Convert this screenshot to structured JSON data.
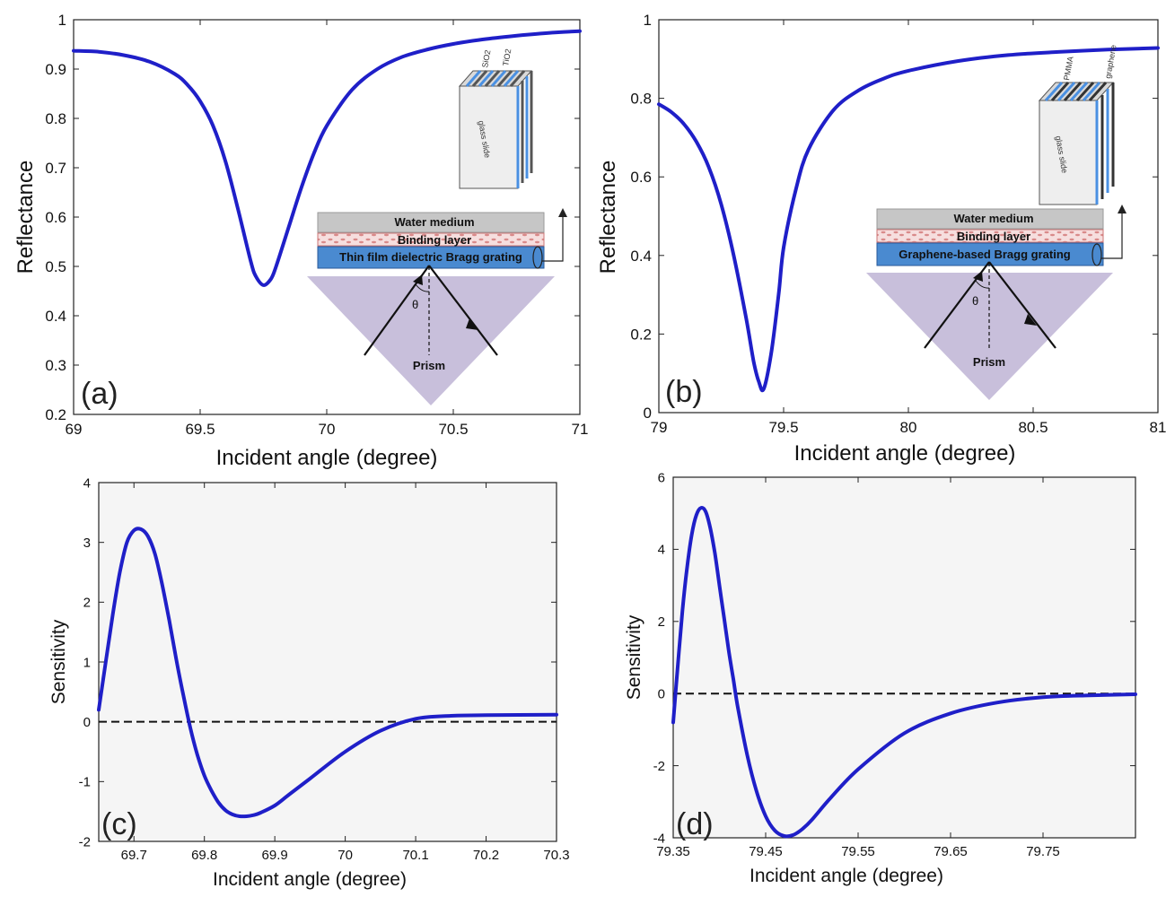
{
  "chart_data": [
    {
      "id": "a",
      "type": "line",
      "panel_label": "(a)",
      "xlabel": "Incident angle (degree)",
      "ylabel": "Reflectance",
      "xlim": [
        69,
        71
      ],
      "ylim": [
        0.2,
        1
      ],
      "xticks": [
        69,
        69.5,
        70,
        70.5,
        71
      ],
      "xtick_labels": [
        "69",
        "69.5",
        "70",
        "70.5",
        "71"
      ],
      "yticks": [
        0.2,
        0.3,
        0.4,
        0.5,
        0.6,
        0.7,
        0.8,
        0.9,
        1
      ],
      "ytick_labels": [
        "0.2",
        "0.3",
        "0.4",
        "0.5",
        "0.6",
        "0.7",
        "0.8",
        "0.9",
        "1"
      ],
      "series": [
        {
          "color": "#1f1fc8",
          "x": [
            69.0,
            69.1,
            69.2,
            69.3,
            69.4,
            69.45,
            69.5,
            69.55,
            69.6,
            69.65,
            69.7,
            69.72,
            69.75,
            69.78,
            69.8,
            69.85,
            69.9,
            69.95,
            70.0,
            70.1,
            70.2,
            70.3,
            70.4,
            70.5,
            70.6,
            70.7,
            70.8,
            70.9,
            71.0
          ],
          "y": [
            0.937,
            0.935,
            0.928,
            0.915,
            0.89,
            0.868,
            0.835,
            0.786,
            0.713,
            0.615,
            0.51,
            0.48,
            0.462,
            0.475,
            0.5,
            0.58,
            0.66,
            0.73,
            0.785,
            0.858,
            0.9,
            0.925,
            0.94,
            0.951,
            0.959,
            0.965,
            0.97,
            0.974,
            0.977
          ]
        }
      ],
      "inset": {
        "layers": [
          "Water medium",
          "Binding layer",
          "Thin film dielectric Bragg grating"
        ],
        "prism_label": "Prism",
        "angle_label": "θ",
        "cube_face_label": "glass slide",
        "cube_labels": [
          "SiO2",
          "TiO2"
        ]
      }
    },
    {
      "id": "b",
      "type": "line",
      "panel_label": "(b)",
      "xlabel": "Incident angle (degree)",
      "ylabel": "Reflectance",
      "xlim": [
        79,
        81
      ],
      "ylim": [
        0,
        1
      ],
      "xticks": [
        79,
        79.5,
        80,
        80.5,
        81
      ],
      "xtick_labels": [
        "79",
        "79.5",
        "80",
        "80.5",
        "81"
      ],
      "yticks": [
        0,
        0.2,
        0.4,
        0.6,
        0.8,
        1
      ],
      "ytick_labels": [
        "0",
        "0.2",
        "0.4",
        "0.6",
        "0.8",
        "1"
      ],
      "series": [
        {
          "color": "#1f1fc8",
          "x": [
            79.0,
            79.05,
            79.1,
            79.15,
            79.2,
            79.25,
            79.3,
            79.35,
            79.38,
            79.4,
            79.42,
            79.45,
            79.48,
            79.5,
            79.55,
            79.6,
            79.7,
            79.8,
            79.9,
            80.0,
            80.2,
            80.4,
            80.6,
            80.8,
            81.0
          ],
          "y": [
            0.785,
            0.765,
            0.735,
            0.69,
            0.625,
            0.53,
            0.4,
            0.24,
            0.13,
            0.08,
            0.06,
            0.15,
            0.3,
            0.42,
            0.57,
            0.67,
            0.77,
            0.82,
            0.85,
            0.87,
            0.895,
            0.91,
            0.918,
            0.924,
            0.928
          ]
        }
      ],
      "inset": {
        "layers": [
          "Water medium",
          "Binding layer",
          "Graphene-based Bragg grating"
        ],
        "prism_label": "Prism",
        "angle_label": "θ",
        "cube_face_label": "glass slide",
        "cube_labels": [
          "PMMA",
          "graphene"
        ]
      }
    },
    {
      "id": "c",
      "type": "line",
      "panel_label": "(c)",
      "xlabel": "Incident angle (degree)",
      "ylabel": "Sensitivity",
      "xlim": [
        69.65,
        70.3
      ],
      "ylim": [
        -2,
        4
      ],
      "xticks": [
        69.7,
        69.8,
        69.9,
        70,
        70.1,
        70.2,
        70.3
      ],
      "xtick_labels": [
        "69.7",
        "69.8",
        "69.9",
        "70",
        "70.1",
        "70.2",
        "70.3"
      ],
      "yticks": [
        -2,
        -1,
        0,
        1,
        2,
        3,
        4
      ],
      "ytick_labels": [
        "-2",
        "-1",
        "0",
        "1",
        "2",
        "3",
        "4"
      ],
      "reference_line_y": 0,
      "series": [
        {
          "color": "#1f1fc8",
          "x": [
            69.65,
            69.66,
            69.67,
            69.68,
            69.69,
            69.7,
            69.71,
            69.72,
            69.73,
            69.74,
            69.75,
            69.76,
            69.77,
            69.78,
            69.79,
            69.8,
            69.81,
            69.82,
            69.83,
            69.84,
            69.85,
            69.86,
            69.87,
            69.88,
            69.9,
            69.92,
            69.95,
            70.0,
            70.05,
            70.1,
            70.15,
            70.2,
            70.3
          ],
          "y": [
            0.2,
            1.0,
            1.8,
            2.5,
            3.0,
            3.2,
            3.22,
            3.1,
            2.8,
            2.3,
            1.7,
            1.05,
            0.45,
            -0.1,
            -0.55,
            -0.9,
            -1.15,
            -1.35,
            -1.48,
            -1.55,
            -1.58,
            -1.58,
            -1.56,
            -1.52,
            -1.4,
            -1.22,
            -0.95,
            -0.5,
            -0.15,
            0.05,
            0.1,
            0.11,
            0.12
          ]
        }
      ]
    },
    {
      "id": "d",
      "type": "line",
      "panel_label": "(d)",
      "xlabel": "Incident angle (degree)",
      "ylabel": "Sensitivity",
      "xlim": [
        79.35,
        79.85
      ],
      "ylim": [
        -4,
        6
      ],
      "xticks": [
        79.35,
        79.45,
        79.55,
        79.65,
        79.75
      ],
      "xtick_labels": [
        "79.35",
        "79.45",
        "79.55",
        "79.65",
        "79.75"
      ],
      "yticks": [
        -4,
        -2,
        0,
        2,
        4,
        6
      ],
      "ytick_labels": [
        "-4",
        "-2",
        "0",
        "2",
        "4",
        "6"
      ],
      "reference_line_y": 0,
      "series": [
        {
          "color": "#1f1fc8",
          "x": [
            79.35,
            79.355,
            79.36,
            79.365,
            79.37,
            79.375,
            79.38,
            79.385,
            79.39,
            79.395,
            79.4,
            79.405,
            79.41,
            79.415,
            79.42,
            79.43,
            79.44,
            79.45,
            79.46,
            79.47,
            79.48,
            79.49,
            79.5,
            79.52,
            79.55,
            79.6,
            79.65,
            79.7,
            79.75,
            79.8,
            79.85
          ],
          "y": [
            -0.8,
            0.8,
            2.3,
            3.5,
            4.4,
            4.95,
            5.15,
            5.05,
            4.6,
            3.9,
            3.0,
            2.1,
            1.2,
            0.4,
            -0.4,
            -1.7,
            -2.7,
            -3.4,
            -3.8,
            -3.95,
            -3.92,
            -3.75,
            -3.5,
            -2.9,
            -2.1,
            -1.1,
            -0.55,
            -0.25,
            -0.1,
            -0.05,
            -0.02
          ]
        }
      ]
    }
  ]
}
